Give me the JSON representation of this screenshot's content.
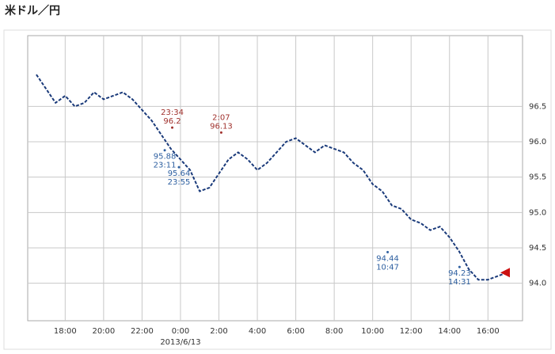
{
  "chart_data": {
    "type": "line",
    "title": "米ドル／円",
    "x_caption": "2013/6/13",
    "series": [
      {
        "color": "#1a3a7a",
        "x": [
          16.5,
          17,
          17.5,
          18,
          18.5,
          19,
          19.5,
          20,
          20.5,
          21,
          21.5,
          22,
          22.5,
          23,
          23.5,
          24,
          24.5,
          25,
          25.5,
          26,
          26.5,
          27,
          27.5,
          28,
          28.5,
          29,
          29.5,
          30,
          30.5,
          31,
          31.5,
          32,
          32.5,
          33,
          33.5,
          34,
          34.5,
          35,
          35.5,
          36,
          36.5,
          37,
          37.5,
          38,
          38.5,
          39,
          39.5,
          40,
          40.5,
          41
        ],
        "values": [
          96.95,
          96.75,
          96.55,
          96.65,
          96.5,
          96.55,
          96.7,
          96.6,
          96.65,
          96.7,
          96.6,
          96.45,
          96.3,
          96.1,
          95.9,
          95.75,
          95.6,
          95.3,
          95.35,
          95.55,
          95.75,
          95.85,
          95.75,
          95.6,
          95.7,
          95.85,
          96.0,
          96.05,
          95.95,
          95.85,
          95.95,
          95.9,
          95.85,
          95.7,
          95.6,
          95.4,
          95.3,
          95.1,
          95.05,
          94.9,
          94.85,
          94.75,
          94.8,
          94.65,
          94.45,
          94.2,
          94.05,
          94.05,
          94.1,
          94.15
        ]
      }
    ],
    "high_labels": [
      {
        "time": "23:34",
        "x": 23.57,
        "value": 96.2
      },
      {
        "time": "2:07",
        "x": 26.12,
        "value": 96.13
      }
    ],
    "low_labels": [
      {
        "time": "23:11",
        "x": 23.18,
        "value": 95.88
      },
      {
        "time": "23:55",
        "x": 23.92,
        "value": 95.64
      },
      {
        "time": "10:47",
        "x": 34.78,
        "value": 94.44
      },
      {
        "time": "14:31",
        "x": 38.52,
        "value": 94.23
      }
    ],
    "high_color": "#a0312d",
    "low_color": "#2d5fa0",
    "marker_color": "#cc1111",
    "xlim": [
      16.05,
      41.8
    ],
    "xticks": [
      {
        "value": 18,
        "label": "18:00"
      },
      {
        "value": 20,
        "label": "20:00"
      },
      {
        "value": 22,
        "label": "22:00"
      },
      {
        "value": 24,
        "label": "0:00"
      },
      {
        "value": 26,
        "label": "2:00"
      },
      {
        "value": 28,
        "label": "4:00"
      },
      {
        "value": 30,
        "label": "6:00"
      },
      {
        "value": 32,
        "label": "8:00"
      },
      {
        "value": 34,
        "label": "10:00"
      },
      {
        "value": 36,
        "label": "12:00"
      },
      {
        "value": 38,
        "label": "14:00"
      },
      {
        "value": 40,
        "label": "16:00"
      }
    ],
    "ylim": [
      93.47,
      97.5
    ],
    "yticks": [
      {
        "value": 94,
        "label": "94.0"
      },
      94.5,
      {
        "value": 95,
        "label": "95.0"
      },
      95.5,
      {
        "value": 96,
        "label": "96.0"
      },
      96.5
    ],
    "caption_at": 24,
    "grid": true
  }
}
